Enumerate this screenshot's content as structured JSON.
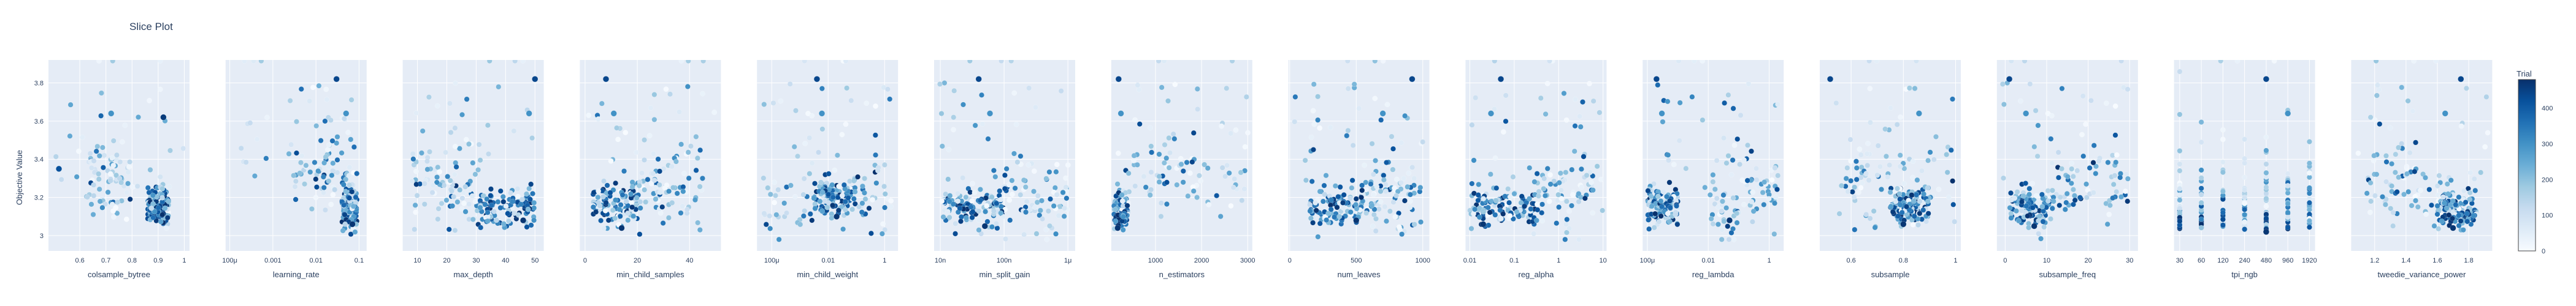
{
  "chart_data": {
    "type": "scatter",
    "title": "Slice Plot",
    "ylabel": "Objective Value",
    "ylim": [
      2.92,
      3.92
    ],
    "yticks": [
      3,
      3.2,
      3.4,
      3.6,
      3.8
    ],
    "ytick_labels": [
      "3",
      "3.2",
      "3.4",
      "3.6",
      "3.8"
    ],
    "grid": true,
    "colorbar": {
      "title": "Trial",
      "range": [
        0,
        480
      ],
      "ticks": [
        0,
        100,
        200,
        300,
        400
      ],
      "colors": [
        "#f7fbff",
        "#deebf7",
        "#c6dbef",
        "#9ecae1",
        "#6baed6",
        "#4292c6",
        "#2171b5",
        "#08519c",
        "#08306b"
      ]
    },
    "panels": [
      {
        "xlabel": "colsample_bytree",
        "scale": "linear",
        "xlim": [
          0.48,
          1.02
        ],
        "ticks": [
          0.6,
          0.7,
          0.8,
          0.9,
          1
        ],
        "tick_labels": [
          "0.6",
          "0.7",
          "0.8",
          "0.9",
          "1"
        ],
        "clusters": [
          [
            0.86,
            0.94,
            3.15
          ],
          [
            0.62,
            0.8,
            3.3
          ]
        ],
        "highlights": [
          [
            0.72,
            3.64,
            300
          ],
          [
            0.92,
            3.62,
            460
          ],
          [
            0.52,
            3.35,
            420
          ]
        ]
      },
      {
        "xlabel": "learning_rate",
        "scale": "log",
        "xlim": [
          8e-05,
          0.15
        ],
        "ticks": [
          0.0001,
          0.001,
          0.01,
          0.1
        ],
        "tick_labels": [
          "100μ",
          "0.001",
          "0.01",
          "0.1"
        ],
        "clusters": [
          [
            0.04,
            0.09,
            3.15
          ],
          [
            0.003,
            0.08,
            3.35
          ]
        ],
        "highlights": [
          [
            0.03,
            3.82,
            440
          ],
          [
            0.05,
            3.64,
            300
          ],
          [
            0.07,
            3.06,
            470
          ]
        ]
      },
      {
        "xlabel": "max_depth",
        "scale": "linear",
        "xlim": [
          5,
          53
        ],
        "ticks": [
          10,
          20,
          30,
          40,
          50
        ],
        "tick_labels": [
          "10",
          "20",
          "30",
          "40",
          "50"
        ],
        "clusters": [
          [
            30,
            50,
            3.15
          ],
          [
            8,
            30,
            3.25
          ]
        ],
        "highlights": [
          [
            50,
            3.82,
            440
          ],
          [
            48,
            3.64,
            300
          ],
          [
            46,
            3.08,
            470
          ]
        ]
      },
      {
        "xlabel": "min_child_samples",
        "scale": "linear",
        "xlim": [
          -2,
          52
        ],
        "ticks": [
          0,
          20,
          40
        ],
        "tick_labels": [
          "0",
          "20",
          "40"
        ],
        "clusters": [
          [
            3,
            20,
            3.15
          ],
          [
            20,
            45,
            3.25
          ]
        ],
        "highlights": [
          [
            8,
            3.82,
            440
          ],
          [
            11,
            3.64,
            300
          ],
          [
            14,
            3.04,
            470
          ]
        ]
      },
      {
        "xlabel": "min_child_weight",
        "scale": "log",
        "xlim": [
          3e-05,
          3
        ],
        "ticks": [
          0.0001,
          0.01,
          1
        ],
        "tick_labels": [
          "100μ",
          "0.01",
          "1"
        ],
        "clusters": [
          [
            0.003,
            0.1,
            3.2
          ],
          [
            5e-05,
            0.003,
            3.15
          ],
          [
            0.1,
            2,
            3.2
          ]
        ],
        "highlights": [
          [
            0.004,
            3.82,
            440
          ],
          [
            0.006,
            3.64,
            300
          ],
          [
            0.02,
            3.1,
            470
          ]
        ]
      },
      {
        "xlabel": "min_split_gain",
        "scale": "log",
        "xlim": [
          8e-09,
          1.3e-06
        ],
        "ticks": [
          1e-08,
          1e-07,
          1e-06
        ],
        "tick_labels": [
          "10n",
          "100n",
          "1μ"
        ],
        "clusters": [
          [
            1e-08,
            1e-07,
            3.15
          ],
          [
            1e-07,
            1e-06,
            3.2
          ]
        ],
        "highlights": [
          [
            4e-08,
            3.82,
            440
          ],
          [
            6e-08,
            3.64,
            300
          ],
          [
            5e-08,
            3.05,
            470
          ]
        ]
      },
      {
        "xlabel": "n_estimators",
        "scale": "linear",
        "xlim": [
          40,
          3100
        ],
        "ticks": [
          1000,
          2000,
          3000
        ],
        "tick_labels": [
          "1000",
          "2000",
          "3000"
        ],
        "clusters": [
          [
            100,
            400,
            3.15
          ],
          [
            300,
            3000,
            3.3
          ]
        ],
        "highlights": [
          [
            200,
            3.82,
            440
          ],
          [
            250,
            3.64,
            300
          ],
          [
            180,
            3.04,
            470
          ]
        ]
      },
      {
        "xlabel": "num_leaves",
        "scale": "linear",
        "xlim": [
          -10,
          1050
        ],
        "ticks": [
          0,
          500,
          1000
        ],
        "tick_labels": [
          "0",
          "500",
          "1000"
        ],
        "clusters": [
          [
            150,
            550,
            3.15
          ],
          [
            550,
            1000,
            3.2
          ]
        ],
        "highlights": [
          [
            920,
            3.82,
            440
          ],
          [
            700,
            3.64,
            300
          ],
          [
            500,
            3.08,
            470
          ]
        ]
      },
      {
        "xlabel": "reg_alpha",
        "scale": "log",
        "xlim": [
          0.008,
          12
        ],
        "ticks": [
          0.01,
          0.1,
          1,
          10
        ],
        "tick_labels": [
          "0.01",
          "0.1",
          "1",
          "10"
        ],
        "clusters": [
          [
            0.01,
            0.3,
            3.15
          ],
          [
            0.3,
            10,
            3.2
          ]
        ],
        "highlights": [
          [
            0.05,
            3.82,
            440
          ],
          [
            0.03,
            3.64,
            300
          ],
          [
            0.02,
            3.06,
            470
          ]
        ]
      },
      {
        "xlabel": "reg_lambda",
        "scale": "log",
        "xlim": [
          7e-05,
          3
        ],
        "ticks": [
          0.0001,
          0.01,
          1
        ],
        "tick_labels": [
          "100μ",
          "0.01",
          "1"
        ],
        "clusters": [
          [
            0.0001,
            0.001,
            3.15
          ],
          [
            0.01,
            0.1,
            3.15
          ],
          [
            0.1,
            2,
            3.25
          ]
        ],
        "highlights": [
          [
            0.0002,
            3.82,
            440
          ],
          [
            0.0003,
            3.64,
            300
          ],
          [
            0.05,
            3.08,
            470
          ]
        ]
      },
      {
        "xlabel": "subsample",
        "scale": "linear",
        "xlim": [
          0.48,
          1.02
        ],
        "ticks": [
          0.6,
          0.8,
          1
        ],
        "tick_labels": [
          "0.6",
          "0.8",
          "1"
        ],
        "clusters": [
          [
            0.75,
            0.9,
            3.15
          ],
          [
            0.55,
            1.0,
            3.25
          ]
        ],
        "highlights": [
          [
            0.52,
            3.82,
            440
          ],
          [
            0.86,
            3.64,
            300
          ],
          [
            0.8,
            3.06,
            470
          ]
        ]
      },
      {
        "xlabel": "subsample_freq",
        "scale": "linear",
        "xlim": [
          -2,
          32
        ],
        "ticks": [
          0,
          10,
          20,
          30
        ],
        "tick_labels": [
          "0",
          "10",
          "20",
          "30"
        ],
        "clusters": [
          [
            1,
            12,
            3.15
          ],
          [
            12,
            30,
            3.25
          ]
        ],
        "highlights": [
          [
            1,
            3.82,
            440
          ],
          [
            5,
            3.64,
            300
          ],
          [
            7,
            3.05,
            470
          ]
        ]
      },
      {
        "xlabel": "tpi_ngb",
        "scale": "log",
        "xlim": [
          25,
          2300
        ],
        "ticks": [
          30,
          60,
          120,
          240,
          480,
          960,
          1920
        ],
        "tick_labels": [
          "30",
          "60",
          "120",
          "240",
          "480",
          "960",
          "1920"
        ],
        "discrete": [
          30,
          60,
          120,
          240,
          480,
          960,
          1920
        ],
        "highlights": [
          [
            480,
            3.82,
            440
          ],
          [
            960,
            3.64,
            300
          ],
          [
            480,
            3.02,
            470
          ]
        ]
      },
      {
        "xlabel": "tweedie_variance_power",
        "scale": "linear",
        "xlim": [
          1.05,
          1.95
        ],
        "ticks": [
          1.2,
          1.4,
          1.6,
          1.8
        ],
        "tick_labels": [
          "1.2",
          "1.4",
          "1.6",
          "1.8"
        ],
        "clusters": [
          [
            1.6,
            1.85,
            3.15
          ],
          [
            1.15,
            1.7,
            3.25
          ]
        ],
        "highlights": [
          [
            1.75,
            3.82,
            440
          ],
          [
            1.65,
            3.64,
            300
          ],
          [
            1.7,
            3.04,
            470
          ]
        ]
      }
    ]
  }
}
